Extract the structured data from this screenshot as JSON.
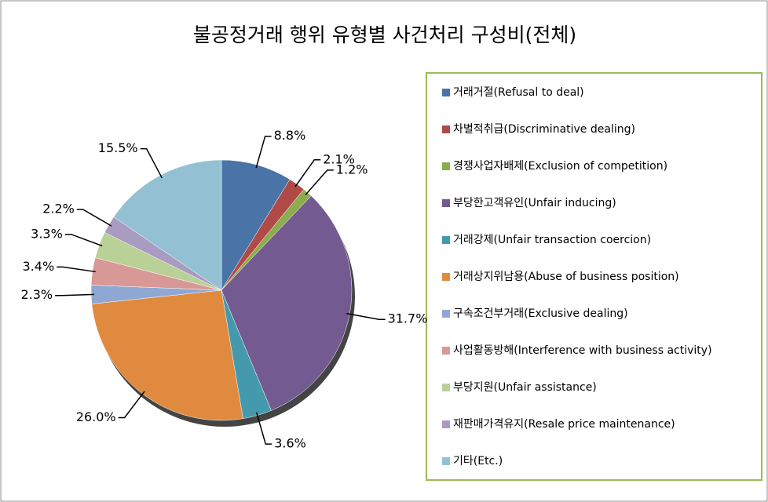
{
  "chart_data": {
    "type": "pie",
    "title": "불공정거래 행위 유형별 사건처리 구성비(전체)",
    "categories": [
      "거래거절(Refusal to deal)",
      "차별적취급(Discriminative dealing)",
      "경쟁사업자배제(Exclusion of competition)",
      "부당한고객유인(Unfair inducing)",
      "거래강제(Unfair transaction coercion)",
      "거래상지위남용(Abuse of business position)",
      "구속조건부거래(Exclusive dealing)",
      "사업활동방해(Interference with business activity)",
      "부당지원(Unfair assistance)",
      "재판매가격유지(Resale price maintenance)",
      "기타(Etc.)"
    ],
    "values": [
      8.8,
      2.1,
      1.2,
      31.7,
      3.6,
      26.0,
      2.3,
      3.4,
      3.3,
      2.2,
      15.5
    ],
    "value_labels": [
      "8.8%",
      "2.1%",
      "1.2%",
      "31.7%",
      "3.6%",
      "26.0%",
      "2.3%",
      "3.4%",
      "3.3%",
      "2.2%",
      "15.5%"
    ],
    "colors": [
      "#4a74a8",
      "#b04a47",
      "#8cac4d",
      "#735a91",
      "#4599ad",
      "#e08a3f",
      "#8fa8d3",
      "#d89896",
      "#b9d097",
      "#a99cc0",
      "#93c1d3"
    ],
    "legend": "right"
  }
}
